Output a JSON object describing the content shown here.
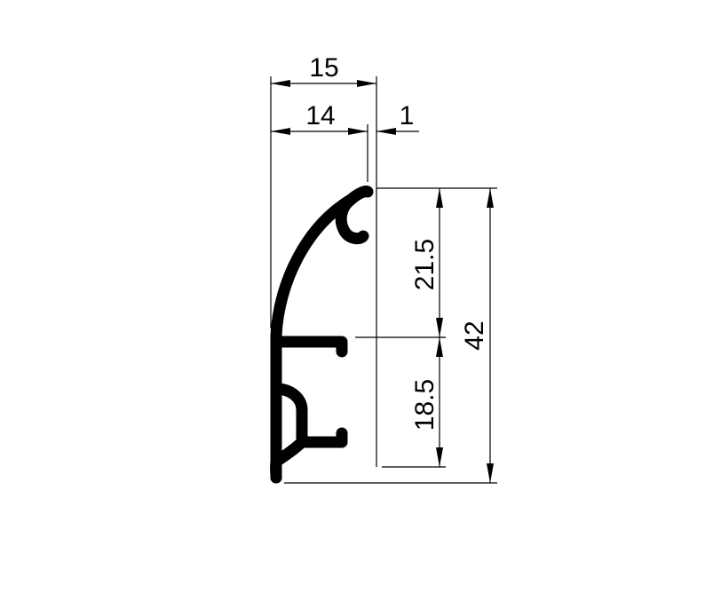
{
  "diagram": {
    "dimensions": {
      "width_total": "15",
      "width_main": "14",
      "width_lip": "1",
      "height_upper": "21.5",
      "height_lower": "18.5",
      "height_total": "42"
    }
  }
}
